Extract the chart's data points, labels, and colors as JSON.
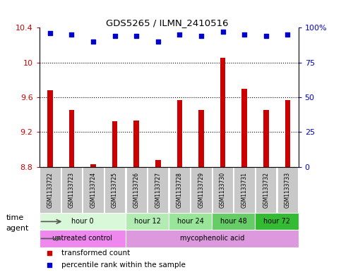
{
  "title": "GDS5265 / ILMN_2410516",
  "samples": [
    "GSM1133722",
    "GSM1133723",
    "GSM1133724",
    "GSM1133725",
    "GSM1133726",
    "GSM1133727",
    "GSM1133728",
    "GSM1133729",
    "GSM1133730",
    "GSM1133731",
    "GSM1133732",
    "GSM1133733"
  ],
  "bar_values": [
    9.68,
    9.45,
    8.83,
    9.32,
    9.33,
    8.88,
    9.57,
    9.45,
    10.05,
    9.7,
    9.45,
    9.57
  ],
  "dot_values": [
    96,
    95,
    90,
    94,
    94,
    90,
    95,
    94,
    97,
    95,
    94,
    95
  ],
  "bar_color": "#cc0000",
  "dot_color": "#0000cc",
  "ylim_left": [
    8.8,
    10.4
  ],
  "ylim_right": [
    0,
    100
  ],
  "yticks_left": [
    8.8,
    9.2,
    9.6,
    10.0,
    10.4
  ],
  "yticks_right": [
    0,
    25,
    50,
    75,
    100
  ],
  "ytick_labels_left": [
    "8.8",
    "9.2",
    "9.6",
    "10",
    "10.4"
  ],
  "ytick_labels_right": [
    "0",
    "25",
    "50",
    "75",
    "100%"
  ],
  "dotted_lines": [
    9.2,
    9.6,
    10.0
  ],
  "time_groups": [
    {
      "label": "hour 0",
      "start": 0,
      "end": 4,
      "color": "#d9f7d9"
    },
    {
      "label": "hour 12",
      "start": 4,
      "end": 6,
      "color": "#b3ecb3"
    },
    {
      "label": "hour 24",
      "start": 6,
      "end": 8,
      "color": "#99e599"
    },
    {
      "label": "hour 48",
      "start": 8,
      "end": 10,
      "color": "#66cc66"
    },
    {
      "label": "hour 72",
      "start": 10,
      "end": 12,
      "color": "#33bb33"
    }
  ],
  "agent_groups": [
    {
      "label": "untreated control",
      "start": 0,
      "end": 4,
      "color": "#ee88ee"
    },
    {
      "label": "mycophenolic acid",
      "start": 4,
      "end": 12,
      "color": "#dd99dd"
    }
  ],
  "legend_items": [
    {
      "label": "transformed count",
      "color": "#cc0000",
      "marker": "s"
    },
    {
      "label": "percentile rank within the sample",
      "color": "#0000cc",
      "marker": "s"
    }
  ],
  "time_label": "time",
  "agent_label": "agent",
  "bar_bottom": 8.8,
  "sample_box_color": "#c8c8c8",
  "bar_width": 0.25
}
